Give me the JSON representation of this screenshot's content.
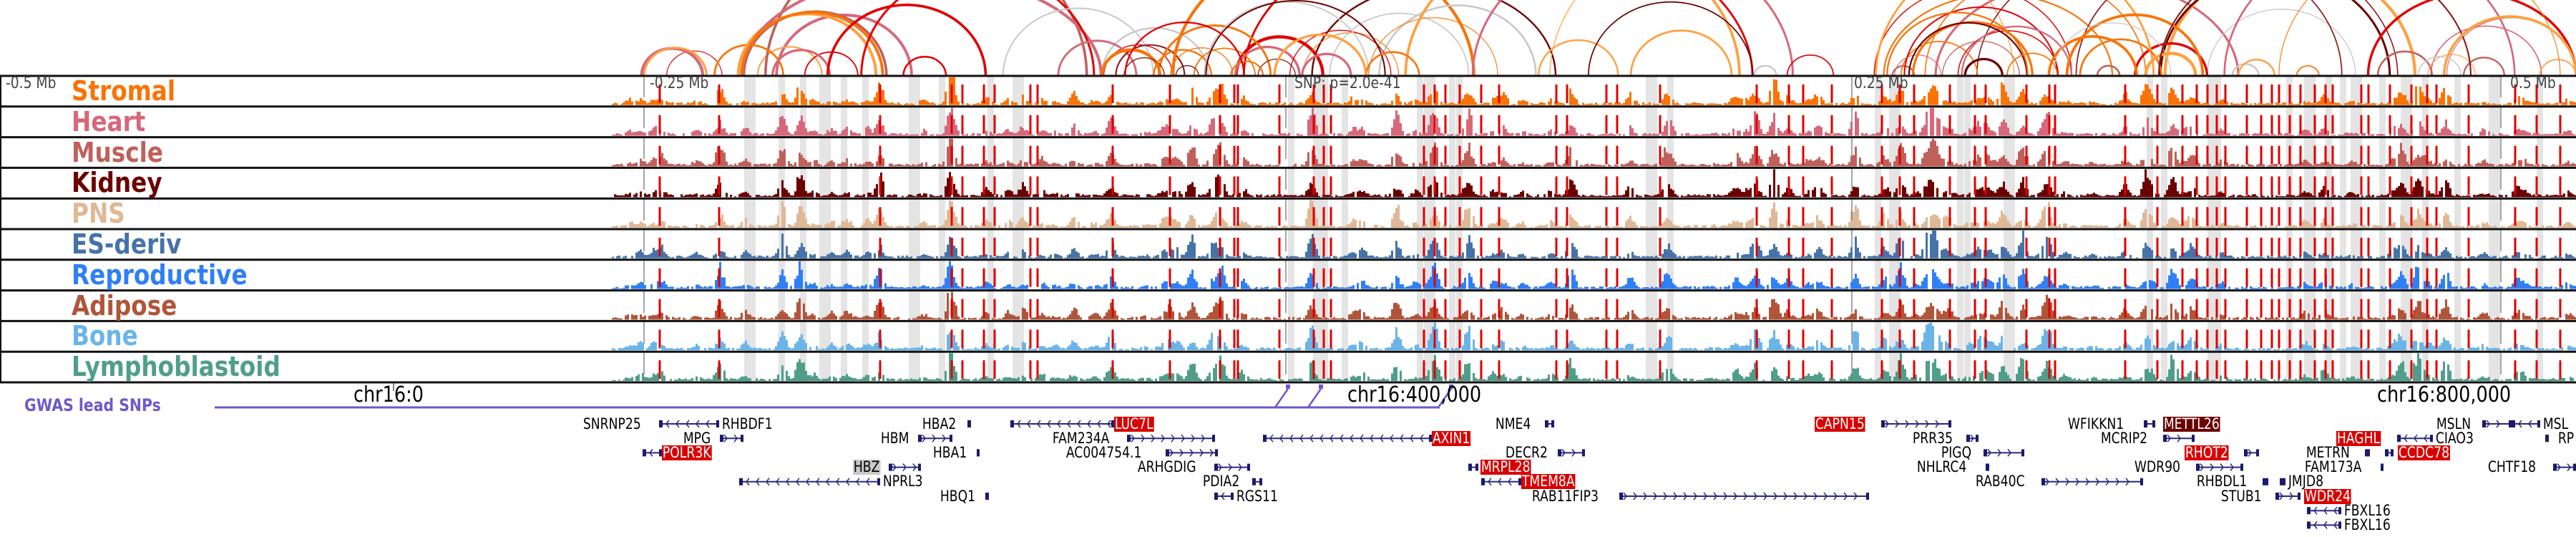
{
  "axis": {
    "left_label": "-0.5 Mb",
    "m025_label": "-0.25 Mb",
    "snp_label": "SNP: p=2.0e-41",
    "p025_label": "0.25 Mb",
    "p05_label": "0.5 Mb"
  },
  "tracks": [
    {
      "name": "Stromal",
      "color": "#f97306"
    },
    {
      "name": "Heart",
      "color": "#d6687a"
    },
    {
      "name": "Muscle",
      "color": "#c0605a"
    },
    {
      "name": "Kidney",
      "color": "#6b0000"
    },
    {
      "name": "PNS",
      "color": "#dfb896"
    },
    {
      "name": "ES-deriv",
      "color": "#4573a8"
    },
    {
      "name": "Reproductive",
      "color": "#2f7ff6"
    },
    {
      "name": "Adipose",
      "color": "#b0553a"
    },
    {
      "name": "Bone",
      "color": "#6ab4e8"
    },
    {
      "name": "Lymphoblastoid",
      "color": "#4f9e8a"
    }
  ],
  "gwas": {
    "label": "GWAS lead SNPs",
    "color": "#6a5acd"
  },
  "coords": {
    "c0": "chr16:0",
    "c400": "chr16:400,000",
    "c800": "chr16:800,000"
  },
  "genes": [
    {
      "name": "SNRNP25",
      "style": "plain",
      "strand": "-"
    },
    {
      "name": "RHBDF1",
      "style": "plain",
      "strand": "-"
    },
    {
      "name": "MPG",
      "style": "plain",
      "strand": "+"
    },
    {
      "name": "POLR3K",
      "style": "red",
      "strand": "-"
    },
    {
      "name": "HBZ",
      "style": "grey",
      "strand": "+"
    },
    {
      "name": "NPRL3",
      "style": "plain",
      "strand": "-"
    },
    {
      "name": "HBQ1",
      "style": "plain",
      "strand": "+"
    },
    {
      "name": "HBA2",
      "style": "plain",
      "strand": "+"
    },
    {
      "name": "HBM",
      "style": "plain",
      "strand": "+"
    },
    {
      "name": "HBA1",
      "style": "plain",
      "strand": "+"
    },
    {
      "name": "LUC7L",
      "style": "red",
      "strand": "-"
    },
    {
      "name": "FAM234A",
      "style": "plain",
      "strand": "+"
    },
    {
      "name": "AC004754.1",
      "style": "plain",
      "strand": "+"
    },
    {
      "name": "ARHGDIG",
      "style": "plain",
      "strand": "+"
    },
    {
      "name": "PDIA2",
      "style": "plain",
      "strand": "-"
    },
    {
      "name": "RGS11",
      "style": "plain",
      "strand": "-"
    },
    {
      "name": "AXIN1",
      "style": "red",
      "strand": "-"
    },
    {
      "name": "NME4",
      "style": "plain",
      "strand": "+"
    },
    {
      "name": "DECR2",
      "style": "plain",
      "strand": "+"
    },
    {
      "name": "MRPL28",
      "style": "red",
      "strand": "-"
    },
    {
      "name": "TMEM8A",
      "style": "red",
      "strand": "-"
    },
    {
      "name": "RAB11FIP3",
      "style": "plain",
      "strand": "+"
    },
    {
      "name": "CAPN15",
      "style": "red",
      "strand": "+"
    },
    {
      "name": "PRR35",
      "style": "plain",
      "strand": "+"
    },
    {
      "name": "PIGQ",
      "style": "plain",
      "strand": "+"
    },
    {
      "name": "NHLRC4",
      "style": "plain",
      "strand": "+"
    },
    {
      "name": "RAB40C",
      "style": "plain",
      "strand": "+"
    },
    {
      "name": "WFIKKN1",
      "style": "plain",
      "strand": "+"
    },
    {
      "name": "METTL26",
      "style": "darkred",
      "strand": "-"
    },
    {
      "name": "MCRIP2",
      "style": "plain",
      "strand": "+"
    },
    {
      "name": "RHOT2",
      "style": "red",
      "strand": "+"
    },
    {
      "name": "WDR90",
      "style": "plain",
      "strand": "+"
    },
    {
      "name": "RHBDL1",
      "style": "plain",
      "strand": "+"
    },
    {
      "name": "JMJD8",
      "style": "plain",
      "strand": "-"
    },
    {
      "name": "STUB1",
      "style": "plain",
      "strand": "+"
    },
    {
      "name": "WDR24",
      "style": "red",
      "strand": "-"
    },
    {
      "name": "FBXL16",
      "style": "plain",
      "strand": "-"
    },
    {
      "name": "FBXL16",
      "style": "plain",
      "strand": "-"
    },
    {
      "name": "HAGHL",
      "style": "red",
      "strand": "-"
    },
    {
      "name": "CIAO3",
      "style": "plain",
      "strand": "-"
    },
    {
      "name": "METRN",
      "style": "plain",
      "strand": "+"
    },
    {
      "name": "CCDC78",
      "style": "red",
      "strand": "-"
    },
    {
      "name": "FAM173A",
      "style": "plain",
      "strand": "+"
    },
    {
      "name": "MSLN",
      "style": "plain",
      "strand": "+"
    },
    {
      "name": "MSL",
      "style": "plain",
      "strand": "-"
    },
    {
      "name": "RP",
      "style": "plain",
      "strand": "+"
    },
    {
      "name": "CHTF18",
      "style": "plain",
      "strand": "+"
    }
  ]
}
